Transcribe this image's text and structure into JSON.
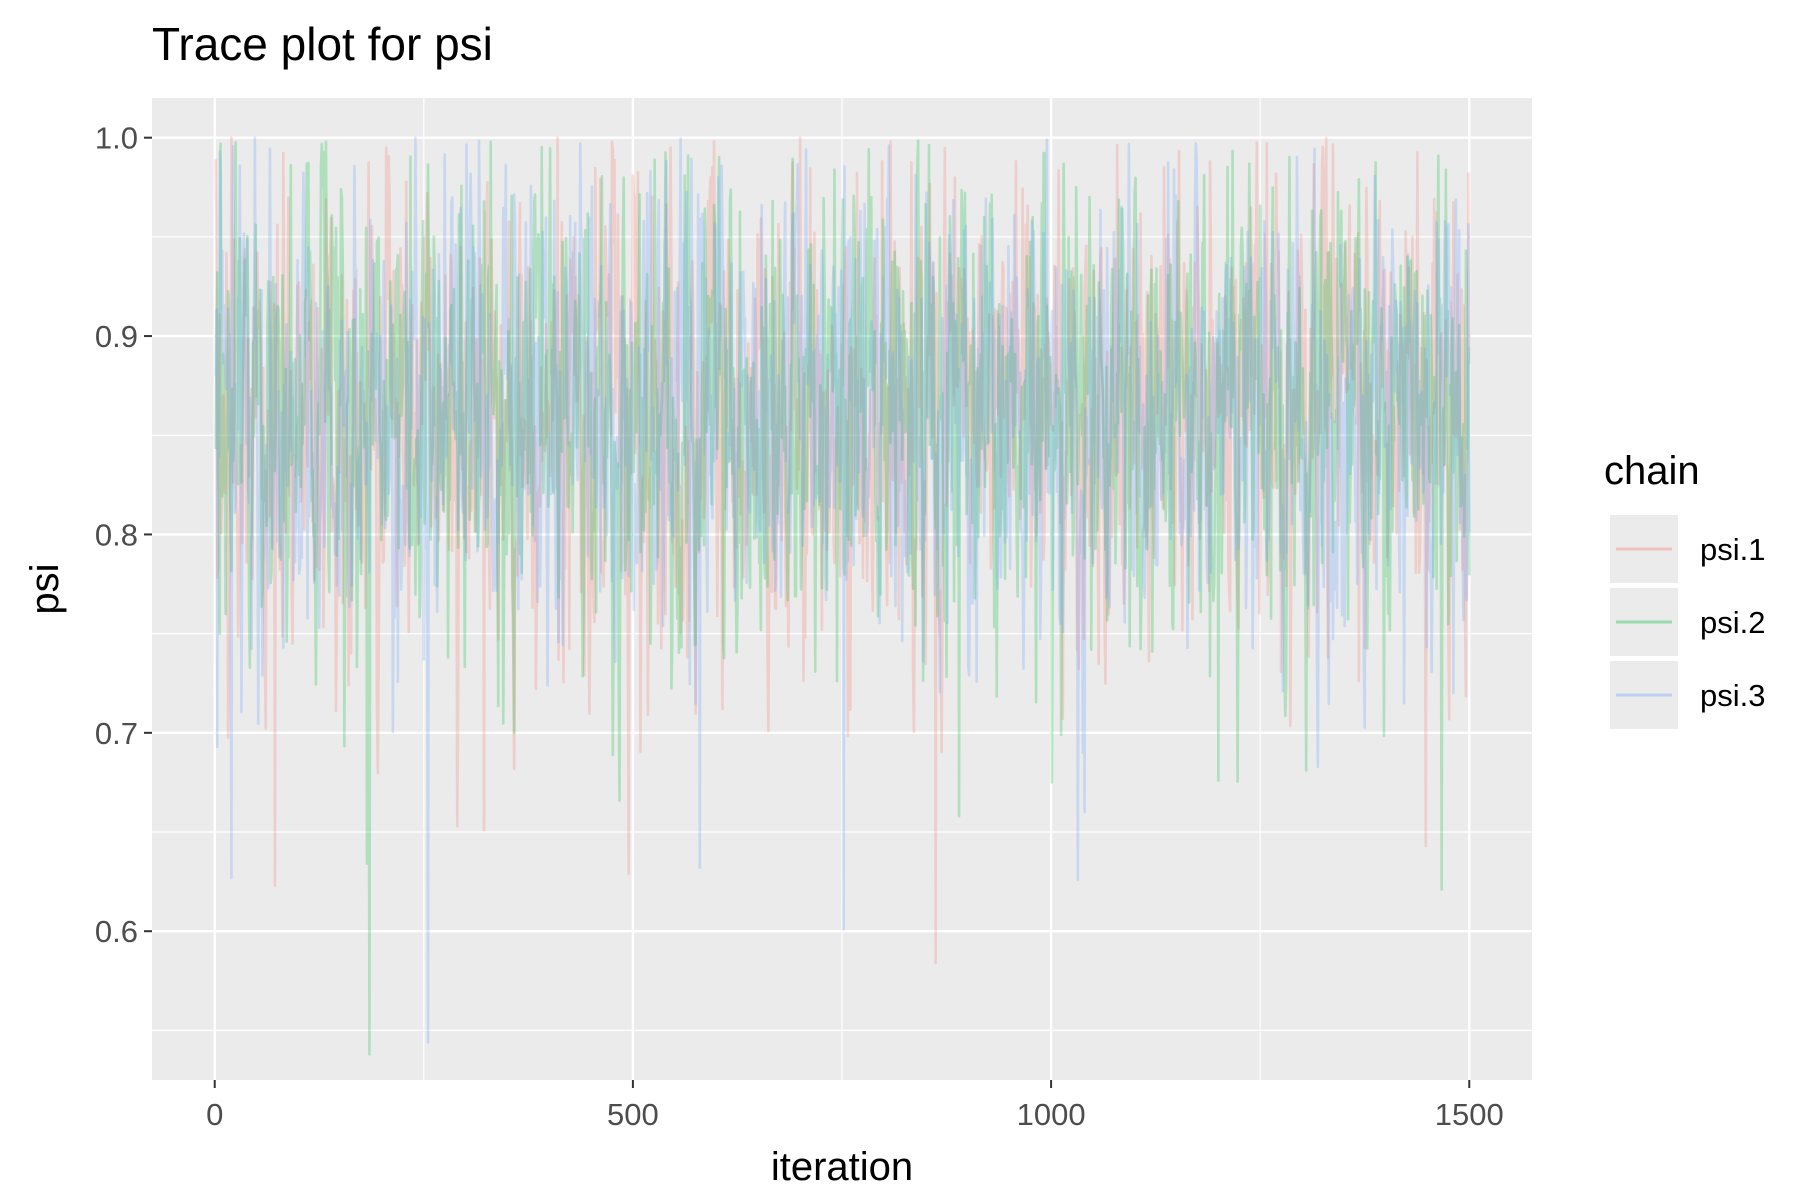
{
  "chart_data": {
    "type": "line",
    "title": "Trace plot for psi",
    "xlabel": "iteration",
    "ylabel": "psi",
    "xlim": [
      -75,
      1575
    ],
    "ylim": [
      0.525,
      1.02
    ],
    "x_ticks": [
      0,
      500,
      1000,
      1500
    ],
    "x_tick_labels": [
      "0",
      "500",
      "1000",
      "1500"
    ],
    "y_ticks": [
      0.6,
      0.7,
      0.8,
      0.9,
      1.0
    ],
    "y_tick_labels": [
      "0.6",
      "0.7",
      "0.8",
      "0.9",
      "1.0"
    ],
    "grid": true,
    "legend": {
      "title": "chain",
      "position": "right"
    },
    "n_iterations": 1500,
    "series": [
      {
        "name": "psi.1",
        "color": "#F8766D",
        "opacity": 0.25,
        "mean": 0.865,
        "sd": 0.06,
        "extremes": [
          {
            "x": 72,
            "y": 0.623
          },
          {
            "x": 290,
            "y": 0.653
          },
          {
            "x": 322,
            "y": 0.651
          },
          {
            "x": 495,
            "y": 0.629
          },
          {
            "x": 862,
            "y": 0.584
          },
          {
            "x": 1448,
            "y": 0.643
          },
          {
            "x": 20,
            "y": 1.0
          },
          {
            "x": 410,
            "y": 1.0
          },
          {
            "x": 700,
            "y": 1.0
          },
          {
            "x": 1499,
            "y": 0.982
          }
        ]
      },
      {
        "name": "psi.2",
        "color": "#00BA38",
        "opacity": 0.25,
        "mean": 0.865,
        "sd": 0.06,
        "extremes": [
          {
            "x": 185,
            "y": 0.538
          },
          {
            "x": 182,
            "y": 0.634
          },
          {
            "x": 890,
            "y": 0.658
          },
          {
            "x": 1200,
            "y": 0.676
          },
          {
            "x": 1305,
            "y": 0.681
          },
          {
            "x": 1467,
            "y": 0.621
          },
          {
            "x": 7,
            "y": 0.997
          },
          {
            "x": 133,
            "y": 0.998
          },
          {
            "x": 330,
            "y": 0.998
          }
        ]
      },
      {
        "name": "psi.3",
        "color": "#619CFF",
        "opacity": 0.25,
        "mean": 0.865,
        "sd": 0.06,
        "extremes": [
          {
            "x": 255,
            "y": 0.544
          },
          {
            "x": 20,
            "y": 0.627
          },
          {
            "x": 580,
            "y": 0.632
          },
          {
            "x": 752,
            "y": 0.601
          },
          {
            "x": 1032,
            "y": 0.626
          },
          {
            "x": 1040,
            "y": 0.66
          },
          {
            "x": 3,
            "y": 0.693
          },
          {
            "x": 48,
            "y": 1.0
          },
          {
            "x": 240,
            "y": 1.0
          },
          {
            "x": 995,
            "y": 0.999
          }
        ]
      }
    ]
  }
}
